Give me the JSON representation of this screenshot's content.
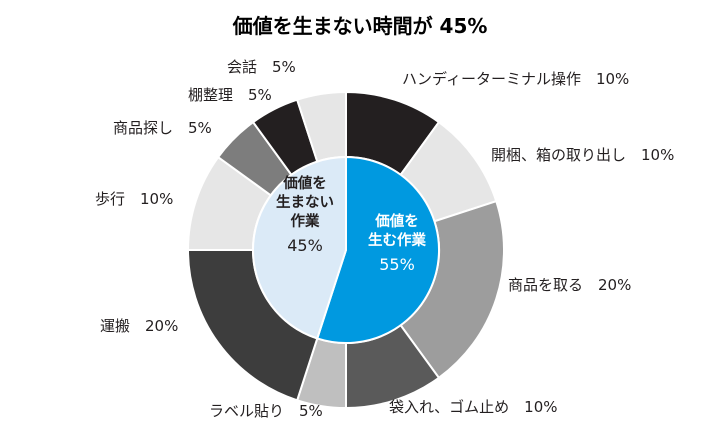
{
  "chart_data": {
    "type": "pie",
    "title": "価値を生まない時間が 45%",
    "inner": [
      {
        "label_lines": [
          "価値を",
          "生む作業"
        ],
        "value_label": "55%",
        "value": 55,
        "color": "#0099e0"
      },
      {
        "label_lines": [
          "価値を",
          "生まない",
          "作業"
        ],
        "value_label": "45%",
        "value": 45,
        "color": "#dbeaf7"
      }
    ],
    "outer": [
      {
        "label": "ハンディーターミナル操作　10%",
        "value": 10,
        "color": "#231f20"
      },
      {
        "label": "開梱、箱の取り出し　10%",
        "value": 10,
        "color": "#e6e6e6"
      },
      {
        "label": "商品を取る　20%",
        "value": 20,
        "color": "#9d9d9d"
      },
      {
        "label": "袋入れ、ゴム止め　10%",
        "value": 10,
        "color": "#5a5a5a"
      },
      {
        "label": "ラベル貼り　5%",
        "value": 5,
        "color": "#bfbfbf"
      },
      {
        "label": "運搬　20%",
        "value": 20,
        "color": "#3d3d3d"
      },
      {
        "label": "歩行　10%",
        "value": 10,
        "color": "#e6e6e6"
      },
      {
        "label": "商品探し　5%",
        "value": 5,
        "color": "#7d7d7d"
      },
      {
        "label": "棚整理　5%",
        "value": 5,
        "color": "#231f20"
      },
      {
        "label": "会話　5%",
        "value": 5,
        "color": "#e6e6e6"
      }
    ]
  }
}
